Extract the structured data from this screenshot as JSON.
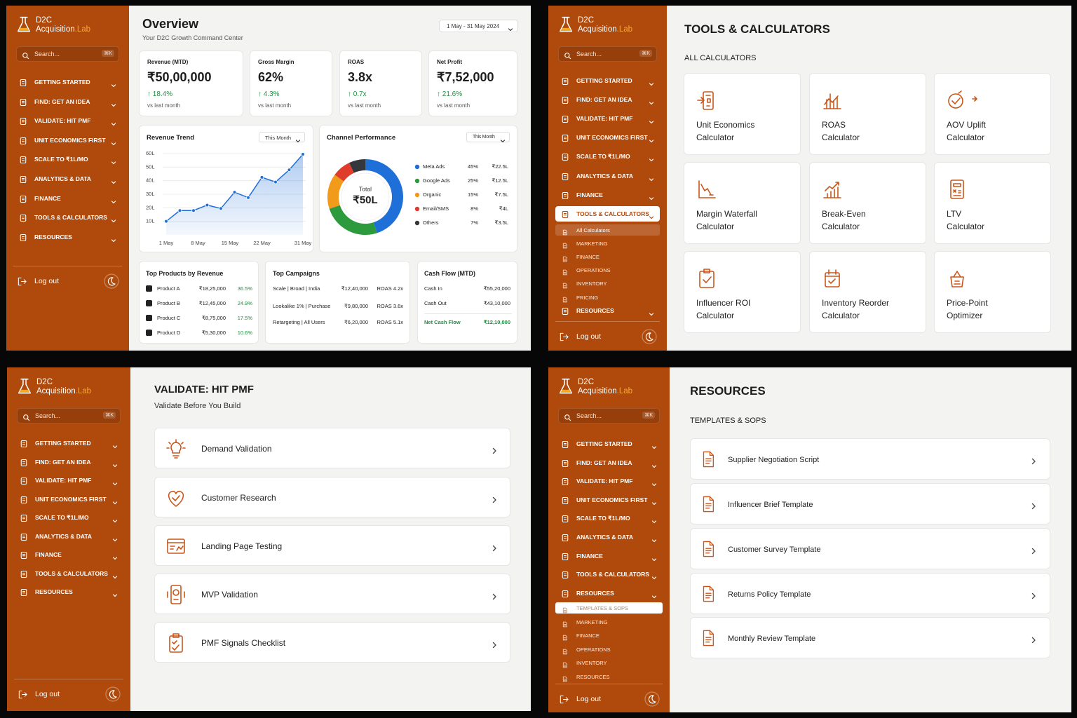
{
  "sidebar": {
    "brand_top": "D2C",
    "brand_name": "Acquisition",
    "brand_suffix": ".Lab",
    "search": "Search...",
    "shortcut": "⌘K",
    "nav": [
      "GETTING STARTED",
      "FIND: GET AN IDEA",
      "VALIDATE: HIT PMF",
      "UNIT ECONOMICS FIRST",
      "SCALE TO ₹1L/MO",
      "ANALYTICS & DATA",
      "FINANCE",
      "TOOLS & CALCULATORS",
      "RESOURCES"
    ],
    "logout": "Log out"
  },
  "overview": {
    "title": "Overview",
    "subtitle": "Your D2C Growth Command Center",
    "date_range": "1 May - 31 May 2024",
    "kpis": [
      {
        "label": "Revenue (MTD)",
        "value": "₹50,00,000",
        "change": "↑ 18.4%",
        "note": "vs last month"
      },
      {
        "label": "Gross Margin",
        "value": "62%",
        "change": "↑ 4.3%",
        "note": "vs last month"
      },
      {
        "label": "ROAS",
        "value": "3.8x",
        "change": "↑ 0.7x",
        "note": "vs last month"
      },
      {
        "label": "Net Profit",
        "value": "₹7,52,000",
        "change": "↑ 21.6%",
        "note": "vs last month"
      }
    ],
    "top_products": {
      "title": "Top Products by Revenue",
      "rows": [
        [
          "Product A",
          "₹18,25,000",
          "36.5%"
        ],
        [
          "Product B",
          "₹12,45,000",
          "24.9%"
        ],
        [
          "Product C",
          "₹8,75,000",
          "17.5%"
        ],
        [
          "Product D",
          "₹5,30,000",
          "10.6%"
        ]
      ]
    },
    "top_campaigns": {
      "title": "Top Campaigns",
      "rows": [
        [
          "Scale | Broad | India",
          "₹12,40,000",
          "ROAS 4.2x"
        ],
        [
          "Lookalike 1% | Purchase",
          "₹9,80,000",
          "ROAS 3.6x"
        ],
        [
          "Retargeting | All Users",
          "₹6,20,000",
          "ROAS 5.1x"
        ]
      ]
    },
    "cash_flow": {
      "title": "Cash Flow (MTD)",
      "rows": [
        [
          "Cash In",
          "₹55,20,000"
        ],
        [
          "Cash Out",
          "₹43,10,000"
        ],
        [
          "Net Cash Flow",
          "₹12,10,000"
        ]
      ]
    }
  },
  "chart_data": [
    {
      "type": "line",
      "title": "Revenue Trend",
      "filter": "This Month",
      "color": "#1f6fd8",
      "grid": true,
      "x": [
        1,
        4,
        7,
        10,
        13,
        16,
        19,
        22,
        25,
        28,
        31
      ],
      "values": [
        10,
        18,
        18,
        22,
        19.5,
        31.5,
        27.5,
        42.5,
        39,
        48,
        59.5
      ],
      "xlim": [
        1,
        31
      ],
      "xticks": [
        {
          "value": 1,
          "label": "1 May"
        },
        {
          "value": 8,
          "label": "8 May"
        },
        {
          "value": 15,
          "label": "15 May"
        },
        {
          "value": 22,
          "label": "22 May"
        },
        {
          "value": 31,
          "label": "31 May"
        }
      ],
      "ylim": [
        0,
        60
      ],
      "yticks": [
        {
          "value": 10,
          "label": "10L"
        },
        {
          "value": 20,
          "label": "20L"
        },
        {
          "value": 30,
          "label": "30L"
        },
        {
          "value": 40,
          "label": "40L"
        },
        {
          "value": 50,
          "label": "50L"
        },
        {
          "value": 60,
          "label": "60L"
        }
      ]
    },
    {
      "type": "donut",
      "title": "Channel Performance",
      "filter": "This Month",
      "center_label": "Total",
      "center_value": "₹50L",
      "series": [
        {
          "name": "Meta Ads",
          "color": "#1f6fd8",
          "values": [
            45
          ],
          "value_labels": [
            "45%"
          ],
          "amount": "₹22.5L"
        },
        {
          "name": "Google Ads",
          "color": "#2e9a3e",
          "values": [
            25
          ],
          "value_labels": [
            "25%"
          ],
          "amount": "₹12.5L"
        },
        {
          "name": "Organic",
          "color": "#f29b1a",
          "values": [
            15
          ],
          "value_labels": [
            "15%"
          ],
          "amount": "₹7.5L"
        },
        {
          "name": "Email/SMS",
          "color": "#e03c2c",
          "values": [
            8
          ],
          "value_labels": [
            "8%"
          ],
          "amount": "₹4L"
        },
        {
          "name": "Others",
          "color": "#34373c",
          "values": [
            7
          ],
          "value_labels": [
            "7%"
          ],
          "amount": "₹3.5L"
        }
      ]
    }
  ],
  "tools": {
    "title": "TOOLS & CALCULATORS",
    "section": "ALL CALCULATORS",
    "submenu": [
      "All Calculators",
      "MARKETING",
      "FINANCE",
      "OPERATIONS",
      "INVENTORY",
      "PRICING"
    ],
    "cards": [
      [
        "Unit Economics",
        "Calculator"
      ],
      [
        "ROAS",
        "Calculator"
      ],
      [
        "AOV Uplift",
        "Calculator"
      ],
      [
        "Margin Waterfall",
        "Calculator"
      ],
      [
        "Break-Even",
        "Calculator"
      ],
      [
        "LTV",
        "Calculator"
      ],
      [
        "Influencer ROI",
        "Calculator"
      ],
      [
        "Inventory Reorder",
        "Calculator"
      ],
      [
        "Price-Point",
        "Optimizer"
      ]
    ]
  },
  "validate": {
    "title": "VALIDATE: HIT PMF",
    "subtitle": "Validate Before You Build",
    "items": [
      "Demand Validation",
      "Customer Research",
      "Landing Page Testing",
      "MVP Validation",
      "PMF Signals Checklist"
    ]
  },
  "resources": {
    "title": "RESOURCES",
    "section": "TEMPLATES & SOPS",
    "submenu": [
      "TEMPLATES & SOPS",
      "MARKETING",
      "FINANCE",
      "OPERATIONS",
      "INVENTORY",
      "RESOURCES"
    ],
    "items": [
      "Supplier Negotiation Script",
      "Influencer Brief Template",
      "Customer Survey Template",
      "Returns Policy Template",
      "Monthly Review Template"
    ]
  }
}
